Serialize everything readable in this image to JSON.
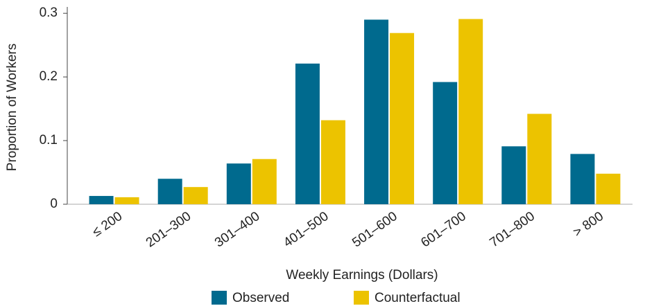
{
  "chart_data": {
    "type": "bar",
    "x_label": "Weekly Earnings (Dollars)",
    "y_label": "Proportion of Workers",
    "categories": [
      "≤ 200",
      "201–300",
      "301–400",
      "401–500",
      "501–600",
      "601–700",
      "701–800",
      "> 800"
    ],
    "series": [
      {
        "name": "Observed",
        "color": "#006a8e",
        "values": [
          0.013,
          0.04,
          0.064,
          0.221,
          0.29,
          0.192,
          0.091,
          0.079
        ]
      },
      {
        "name": "Counterfactual",
        "color": "#ecc300",
        "values": [
          0.011,
          0.027,
          0.071,
          0.132,
          0.269,
          0.291,
          0.142,
          0.048
        ]
      }
    ],
    "ylim": [
      0,
      0.31
    ],
    "yticks": [
      0,
      0.1,
      0.2,
      0.3
    ]
  }
}
